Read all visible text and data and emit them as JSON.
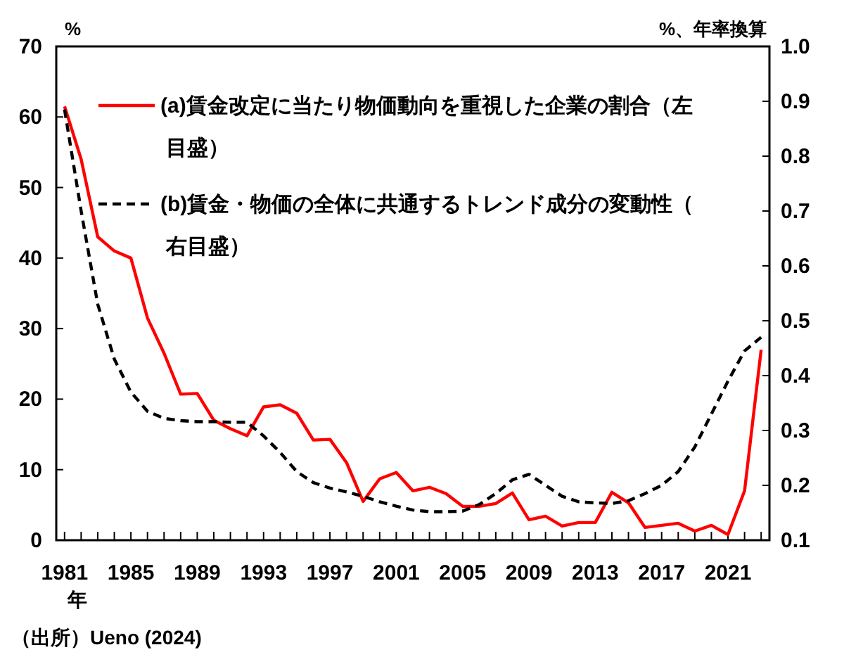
{
  "chart_data": {
    "type": "line",
    "ylabel": "%",
    "y2label": "%、年率換算",
    "xlabel": "年",
    "x": [
      1981,
      1982,
      1983,
      1984,
      1985,
      1986,
      1987,
      1988,
      1989,
      1990,
      1991,
      1992,
      1993,
      1994,
      1995,
      1996,
      1997,
      1998,
      1999,
      2000,
      2001,
      2002,
      2003,
      2004,
      2005,
      2006,
      2007,
      2008,
      2009,
      2010,
      2011,
      2012,
      2013,
      2014,
      2015,
      2016,
      2017,
      2018,
      2019,
      2020,
      2021,
      2022,
      2023
    ],
    "series": [
      {
        "name": "(a)賃金改定に当たり物価動向を重視した企業の割合（左目盛）",
        "color": "#ff0000",
        "line_style": "solid",
        "values": [
          61.5,
          54,
          43,
          41,
          40,
          31.5,
          26.5,
          20.7,
          20.8,
          17,
          15.8,
          14.8,
          18.9,
          19.2,
          18,
          14.2,
          14.3,
          11,
          5.5,
          8.7,
          9.6,
          7,
          7.5,
          6.6,
          4.8,
          4.8,
          5.2,
          6.7,
          2.9,
          3.4,
          2,
          2.5,
          2.5,
          6.8,
          5.3,
          1.8,
          2.1,
          2.4,
          1.3,
          2.1,
          0.8,
          7,
          27
        ]
      },
      {
        "name": "(b)賃金・物価の全体に共通するトレンド成分の変動性（右目盛）",
        "color": "#000000",
        "line_style": "dashed",
        "axis": "y2",
        "values": [
          0.885,
          0.7,
          0.53,
          0.43,
          0.37,
          0.335,
          0.322,
          0.318,
          0.316,
          0.316,
          0.315,
          0.315,
          0.29,
          0.26,
          0.225,
          0.205,
          0.195,
          0.188,
          0.18,
          0.17,
          0.162,
          0.155,
          0.152,
          0.152,
          0.153,
          0.165,
          0.185,
          0.21,
          0.22,
          0.2,
          0.18,
          0.17,
          0.168,
          0.167,
          0.172,
          0.185,
          0.2,
          0.225,
          0.27,
          0.33,
          0.39,
          0.445,
          0.47
        ]
      }
    ],
    "xlim": [
      1980.5,
      2023.5
    ],
    "xticks": [
      {
        "value": 1981,
        "label": "1981"
      },
      {
        "value": 1982,
        "label": null
      },
      {
        "value": 1983,
        "label": null
      },
      {
        "value": 1984,
        "label": null
      },
      {
        "value": 1985,
        "label": "1985"
      },
      {
        "value": 1986,
        "label": null
      },
      {
        "value": 1987,
        "label": null
      },
      {
        "value": 1988,
        "label": null
      },
      {
        "value": 1989,
        "label": "1989"
      },
      {
        "value": 1990,
        "label": null
      },
      {
        "value": 1991,
        "label": null
      },
      {
        "value": 1992,
        "label": null
      },
      {
        "value": 1993,
        "label": "1993"
      },
      {
        "value": 1994,
        "label": null
      },
      {
        "value": 1995,
        "label": null
      },
      {
        "value": 1996,
        "label": null
      },
      {
        "value": 1997,
        "label": "1997"
      },
      {
        "value": 1998,
        "label": null
      },
      {
        "value": 1999,
        "label": null
      },
      {
        "value": 2000,
        "label": null
      },
      {
        "value": 2001,
        "label": "2001"
      },
      {
        "value": 2002,
        "label": null
      },
      {
        "value": 2003,
        "label": null
      },
      {
        "value": 2004,
        "label": null
      },
      {
        "value": 2005,
        "label": "2005"
      },
      {
        "value": 2006,
        "label": null
      },
      {
        "value": 2007,
        "label": null
      },
      {
        "value": 2008,
        "label": null
      },
      {
        "value": 2009,
        "label": "2009"
      },
      {
        "value": 2010,
        "label": null
      },
      {
        "value": 2011,
        "label": null
      },
      {
        "value": 2012,
        "label": null
      },
      {
        "value": 2013,
        "label": "2013"
      },
      {
        "value": 2014,
        "label": null
      },
      {
        "value": 2015,
        "label": null
      },
      {
        "value": 2016,
        "label": null
      },
      {
        "value": 2017,
        "label": "2017"
      },
      {
        "value": 2018,
        "label": null
      },
      {
        "value": 2019,
        "label": null
      },
      {
        "value": 2020,
        "label": null
      },
      {
        "value": 2021,
        "label": "2021"
      },
      {
        "value": 2022,
        "label": null
      },
      {
        "value": 2023,
        "label": null
      }
    ],
    "ylim": [
      0,
      70
    ],
    "yticks": [
      0,
      10,
      20,
      30,
      40,
      50,
      60,
      70
    ],
    "y2lim": [
      0.1,
      1.0
    ],
    "y2ticks": [
      {
        "value": 0.1,
        "label": "0.1"
      },
      {
        "value": 0.2,
        "label": "0.2"
      },
      {
        "value": 0.3,
        "label": "0.3"
      },
      {
        "value": 0.4,
        "label": "0.4"
      },
      {
        "value": 0.5,
        "label": "0.5"
      },
      {
        "value": 0.6,
        "label": "0.6"
      },
      {
        "value": 0.7,
        "label": "0.7"
      },
      {
        "value": 0.8,
        "label": "0.8"
      },
      {
        "value": 0.9,
        "label": "0.9"
      },
      {
        "value": 1.0,
        "label": "1.0"
      }
    ],
    "grid": false,
    "legend": "top left",
    "marker": "none",
    "annotations": [
      "（出所）Ueno (2024)"
    ]
  }
}
